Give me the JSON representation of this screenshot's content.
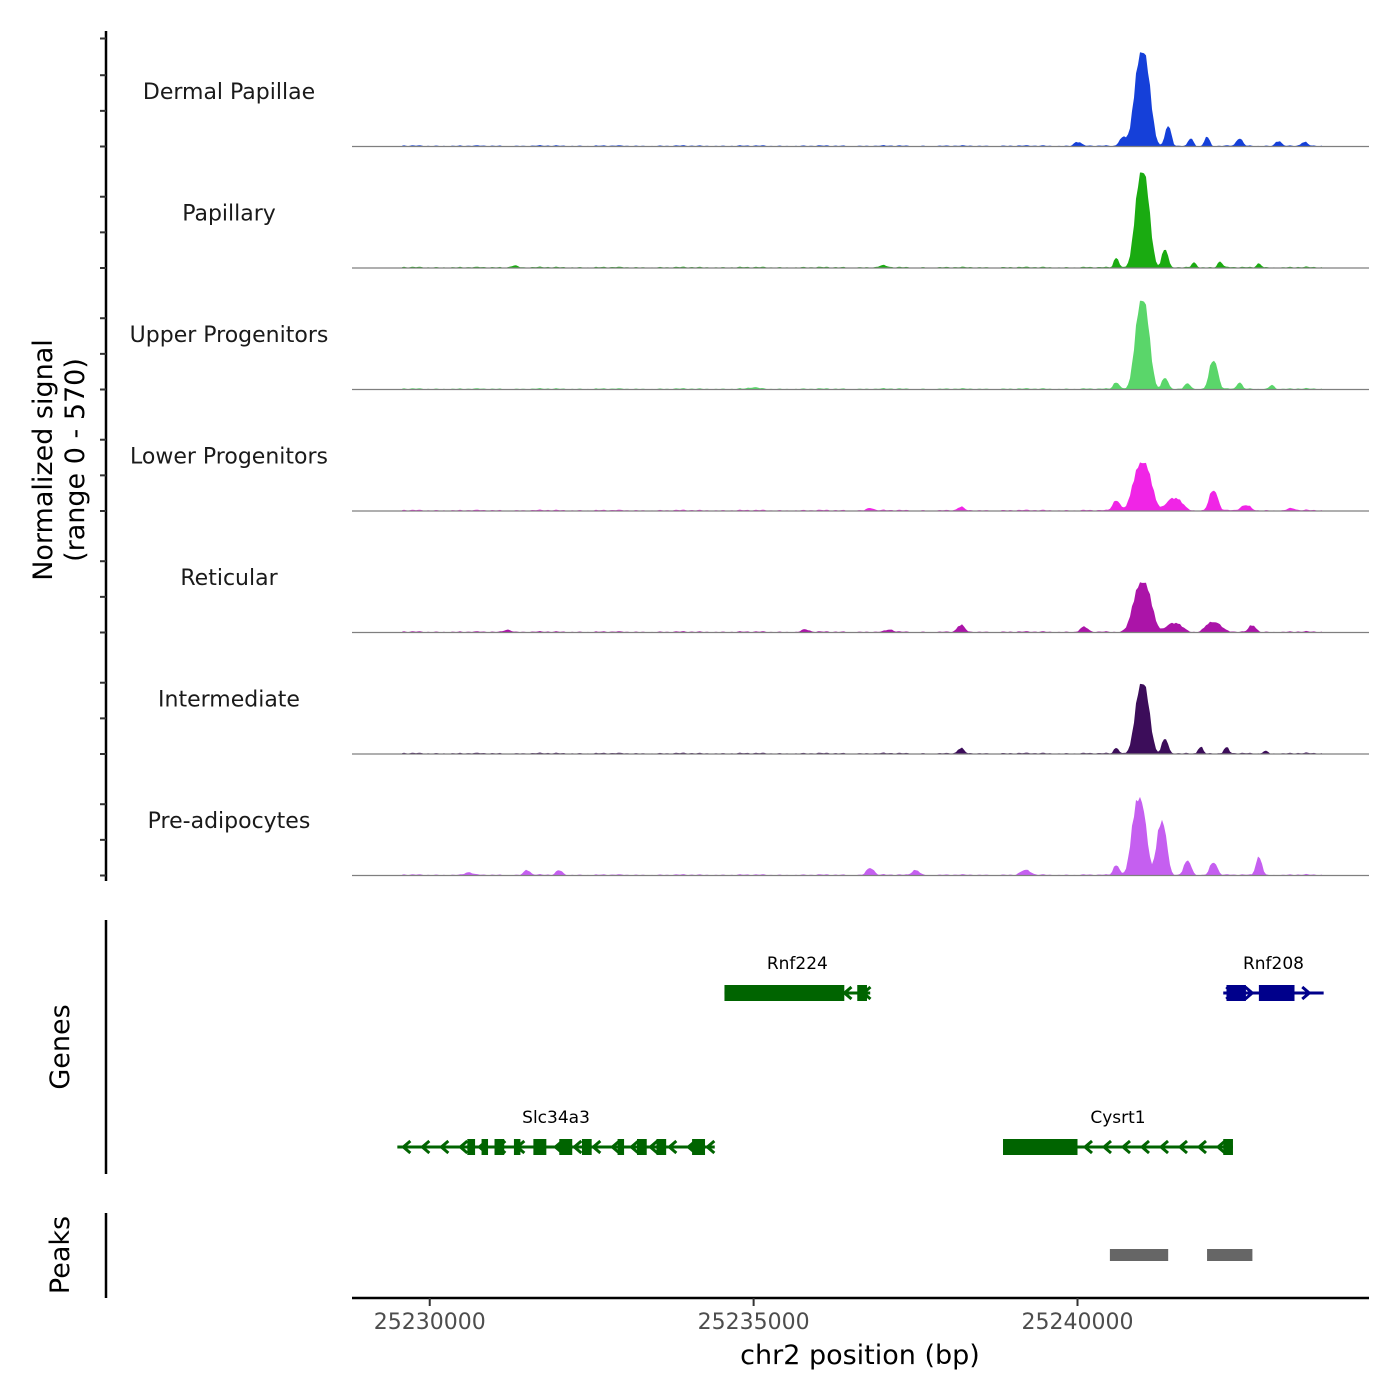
{
  "chart_data": {
    "type": "area",
    "title": "",
    "chromosome": "chr2",
    "xlabel": "chr2 position (bp)",
    "ylabel": "Normalized signal",
    "ylabel_range": "(range 0 - 570)",
    "xlim": [
      25228800,
      25244500
    ],
    "ylim": [
      0,
      570
    ],
    "x_ticks": [
      25230000,
      25235000,
      25240000
    ],
    "x_tick_labels": [
      "25230000",
      "25235000",
      "25240000"
    ],
    "tracks": [
      {
        "name": "Dermal Papillae",
        "color": "#1540d9",
        "peaks": [
          {
            "center": 25241000,
            "height": 550,
            "width": 120
          },
          {
            "center": 25241400,
            "height": 110,
            "width": 50
          },
          {
            "center": 25240700,
            "height": 50,
            "width": 60
          },
          {
            "center": 25240000,
            "height": 25,
            "width": 60
          },
          {
            "center": 25241750,
            "height": 45,
            "width": 40
          },
          {
            "center": 25242000,
            "height": 55,
            "width": 40
          },
          {
            "center": 25242500,
            "height": 45,
            "width": 50
          },
          {
            "center": 25243100,
            "height": 30,
            "width": 50
          },
          {
            "center": 25243500,
            "height": 20,
            "width": 50
          }
        ]
      },
      {
        "name": "Papillary",
        "color": "#1aab11",
        "peaks": [
          {
            "center": 25241000,
            "height": 560,
            "width": 110
          },
          {
            "center": 25241350,
            "height": 100,
            "width": 50
          },
          {
            "center": 25240600,
            "height": 60,
            "width": 40
          },
          {
            "center": 25241800,
            "height": 30,
            "width": 40
          },
          {
            "center": 25242200,
            "height": 35,
            "width": 40
          },
          {
            "center": 25242800,
            "height": 25,
            "width": 40
          },
          {
            "center": 25231300,
            "height": 12,
            "width": 60
          },
          {
            "center": 25237000,
            "height": 10,
            "width": 60
          }
        ]
      },
      {
        "name": "Upper Progenitors",
        "color": "#5ad66a",
        "peaks": [
          {
            "center": 25241000,
            "height": 520,
            "width": 110
          },
          {
            "center": 25242100,
            "height": 170,
            "width": 70
          },
          {
            "center": 25241350,
            "height": 60,
            "width": 50
          },
          {
            "center": 25240600,
            "height": 40,
            "width": 50
          },
          {
            "center": 25241700,
            "height": 30,
            "width": 50
          },
          {
            "center": 25242500,
            "height": 40,
            "width": 40
          },
          {
            "center": 25243000,
            "height": 25,
            "width": 40
          },
          {
            "center": 25235000,
            "height": 8,
            "width": 80
          }
        ]
      },
      {
        "name": "Lower Progenitors",
        "color": "#f025e6",
        "peaks": [
          {
            "center": 25241000,
            "height": 280,
            "width": 140
          },
          {
            "center": 25242100,
            "height": 120,
            "width": 70
          },
          {
            "center": 25241500,
            "height": 70,
            "width": 120
          },
          {
            "center": 25238200,
            "height": 20,
            "width": 50
          },
          {
            "center": 25236800,
            "height": 15,
            "width": 50
          },
          {
            "center": 25242600,
            "height": 30,
            "width": 80
          },
          {
            "center": 25240600,
            "height": 60,
            "width": 60
          },
          {
            "center": 25243300,
            "height": 12,
            "width": 60
          }
        ]
      },
      {
        "name": "Reticular",
        "color": "#ab14a8",
        "peaks": [
          {
            "center": 25241000,
            "height": 290,
            "width": 140
          },
          {
            "center": 25242100,
            "height": 60,
            "width": 120
          },
          {
            "center": 25241500,
            "height": 50,
            "width": 120
          },
          {
            "center": 25238200,
            "height": 40,
            "width": 60
          },
          {
            "center": 25240100,
            "height": 30,
            "width": 60
          },
          {
            "center": 25242700,
            "height": 40,
            "width": 60
          },
          {
            "center": 25231200,
            "height": 15,
            "width": 60
          },
          {
            "center": 25235800,
            "height": 15,
            "width": 60
          },
          {
            "center": 25237100,
            "height": 12,
            "width": 60
          }
        ]
      },
      {
        "name": "Intermediate",
        "color": "#3c0d5a",
        "peaks": [
          {
            "center": 25241000,
            "height": 410,
            "width": 110
          },
          {
            "center": 25241350,
            "height": 80,
            "width": 50
          },
          {
            "center": 25238200,
            "height": 30,
            "width": 50
          },
          {
            "center": 25240600,
            "height": 35,
            "width": 40
          },
          {
            "center": 25241900,
            "height": 40,
            "width": 40
          },
          {
            "center": 25242300,
            "height": 35,
            "width": 40
          },
          {
            "center": 25242900,
            "height": 15,
            "width": 40
          }
        ]
      },
      {
        "name": "Pre-adipocytes",
        "color": "#c55ff0",
        "peaks": [
          {
            "center": 25240950,
            "height": 450,
            "width": 110
          },
          {
            "center": 25241300,
            "height": 300,
            "width": 80
          },
          {
            "center": 25241700,
            "height": 80,
            "width": 60
          },
          {
            "center": 25242100,
            "height": 75,
            "width": 60
          },
          {
            "center": 25242800,
            "height": 110,
            "width": 50
          },
          {
            "center": 25240600,
            "height": 60,
            "width": 50
          },
          {
            "center": 25231500,
            "height": 30,
            "width": 50
          },
          {
            "center": 25232000,
            "height": 25,
            "width": 50
          },
          {
            "center": 25236800,
            "height": 40,
            "width": 60
          },
          {
            "center": 25237500,
            "height": 30,
            "width": 60
          },
          {
            "center": 25239200,
            "height": 25,
            "width": 80
          },
          {
            "center": 25230600,
            "height": 15,
            "width": 60
          }
        ]
      }
    ],
    "genes": [
      {
        "name": "Rnf224",
        "color": "#006400",
        "strand": "-",
        "row": 1,
        "start": 25234550,
        "end": 25236800,
        "exons": [
          [
            25234550,
            25236400
          ],
          [
            25236600,
            25236750
          ]
        ]
      },
      {
        "name": "Rnf208",
        "color": "#00008b",
        "strand": "+",
        "row": 1,
        "start": 25242250,
        "end": 25243800,
        "exons": [
          [
            25242300,
            25242600
          ],
          [
            25242800,
            25243350
          ]
        ]
      },
      {
        "name": "Slc34a3",
        "color": "#006400",
        "strand": "-",
        "row": 2,
        "start": 25229500,
        "end": 25234400,
        "exons": [
          [
            25230580,
            25230700
          ],
          [
            25230800,
            25230900
          ],
          [
            25231000,
            25231150
          ],
          [
            25231300,
            25231400
          ],
          [
            25231600,
            25231800
          ],
          [
            25232000,
            25232200
          ],
          [
            25232350,
            25232500
          ],
          [
            25232900,
            25233000
          ],
          [
            25233200,
            25233350
          ],
          [
            25233500,
            25233650
          ],
          [
            25234050,
            25234250
          ]
        ]
      },
      {
        "name": "Cysrt1",
        "color": "#006400",
        "strand": "-",
        "row": 2,
        "start": 25238850,
        "end": 25242400,
        "exons": [
          [
            25238850,
            25240000
          ],
          [
            25242250,
            25242400
          ]
        ]
      }
    ],
    "genes_track_label": "Genes",
    "peaks_track_label": "Peaks",
    "peak_regions": [
      [
        25240500,
        25241400
      ],
      [
        25242000,
        25242700
      ]
    ],
    "peak_color": "#666666"
  }
}
